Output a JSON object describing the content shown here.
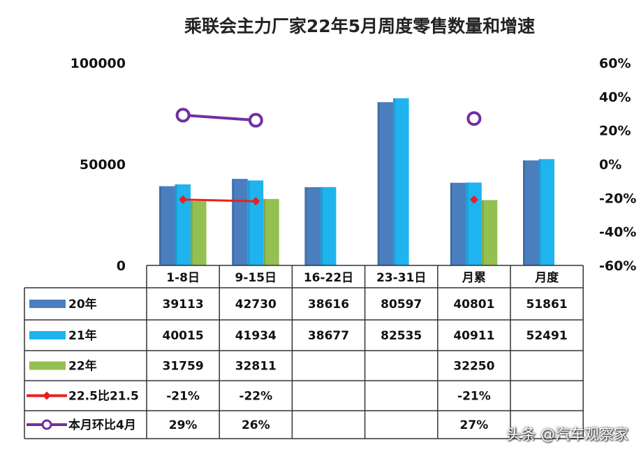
{
  "chart_data": {
    "type": "bar",
    "title": "乘联会主力厂家22年5月周度零售数量和增速",
    "categories": [
      "1-8日",
      "9-15日",
      "16-22日",
      "23-31日",
      "月累",
      "月度"
    ],
    "left_axis": {
      "ylim": [
        0,
        100000
      ],
      "ticks": [
        "0",
        "50000",
        "100000"
      ]
    },
    "right_axis": {
      "ylim": [
        -60,
        60
      ],
      "ticks": [
        "-60%",
        "-40%",
        "-20%",
        "0%",
        "20%",
        "40%",
        "60%"
      ]
    },
    "series": [
      {
        "name": "20年",
        "type": "bar",
        "color": "#4a7ebf",
        "values": [
          39113,
          42730,
          38616,
          80597,
          40801,
          51861
        ]
      },
      {
        "name": "21年",
        "type": "bar",
        "color": "#1fb3ef",
        "values": [
          40015,
          41934,
          38677,
          82535,
          40911,
          52491
        ]
      },
      {
        "name": "22年",
        "type": "bar",
        "color": "#93c051",
        "values": [
          31759,
          32811,
          null,
          null,
          32250,
          null
        ]
      },
      {
        "name": "22.5比21.5",
        "type": "line",
        "axis": "right",
        "color": "#e8201e",
        "values": [
          -21,
          -22,
          null,
          null,
          -21,
          null
        ],
        "labels": [
          "-21%",
          "-22%",
          "",
          "",
          "-21%",
          ""
        ]
      },
      {
        "name": "本月环比4月",
        "type": "line",
        "axis": "right",
        "color": "#7030a0",
        "values": [
          29,
          26,
          null,
          null,
          27,
          null
        ],
        "labels": [
          "29%",
          "26%",
          "",
          "",
          "27%",
          ""
        ]
      }
    ]
  },
  "watermark": "头条 @汽车观察家"
}
